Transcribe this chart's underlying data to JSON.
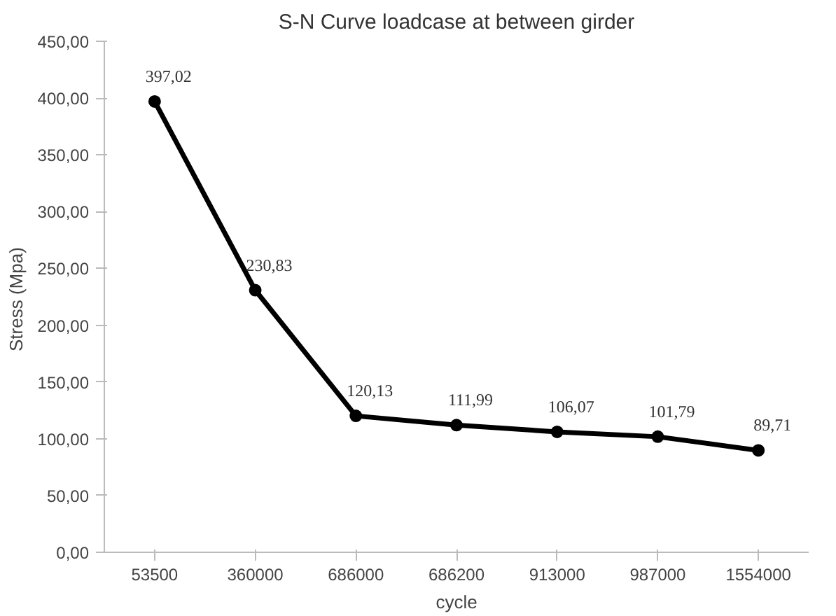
{
  "chart_data": {
    "type": "line",
    "title": "S-N Curve loadcase at between girder",
    "xlabel": "cycle",
    "ylabel": "Stress  (Mpa)",
    "categories": [
      "53500",
      "360000",
      "686000",
      "686200",
      "913000",
      "987000",
      "1554000"
    ],
    "series": [
      {
        "color": "#000000",
        "values": [
          397.02,
          230.83,
          120.13,
          111.99,
          106.07,
          101.79,
          89.71
        ],
        "value_labels": [
          "397,02",
          "230,83",
          "120,13",
          "111,99",
          "106,07",
          "101,79",
          "89,71"
        ]
      }
    ],
    "ylim": [
      0,
      450
    ],
    "yticks": [
      {
        "value": 0,
        "label": "0,00"
      },
      {
        "value": 50,
        "label": "50,00"
      },
      {
        "value": 100,
        "label": "100,00"
      },
      {
        "value": 150,
        "label": "150,00"
      },
      {
        "value": 200,
        "label": "200,00"
      },
      {
        "value": 250,
        "label": "250,00"
      },
      {
        "value": 300,
        "label": "300,00"
      },
      {
        "value": 350,
        "label": "350,00"
      },
      {
        "value": 400,
        "label": "400,00"
      },
      {
        "value": 450,
        "label": "450,00"
      }
    ],
    "grid": false,
    "marker": "circle",
    "line_style": "solid"
  }
}
